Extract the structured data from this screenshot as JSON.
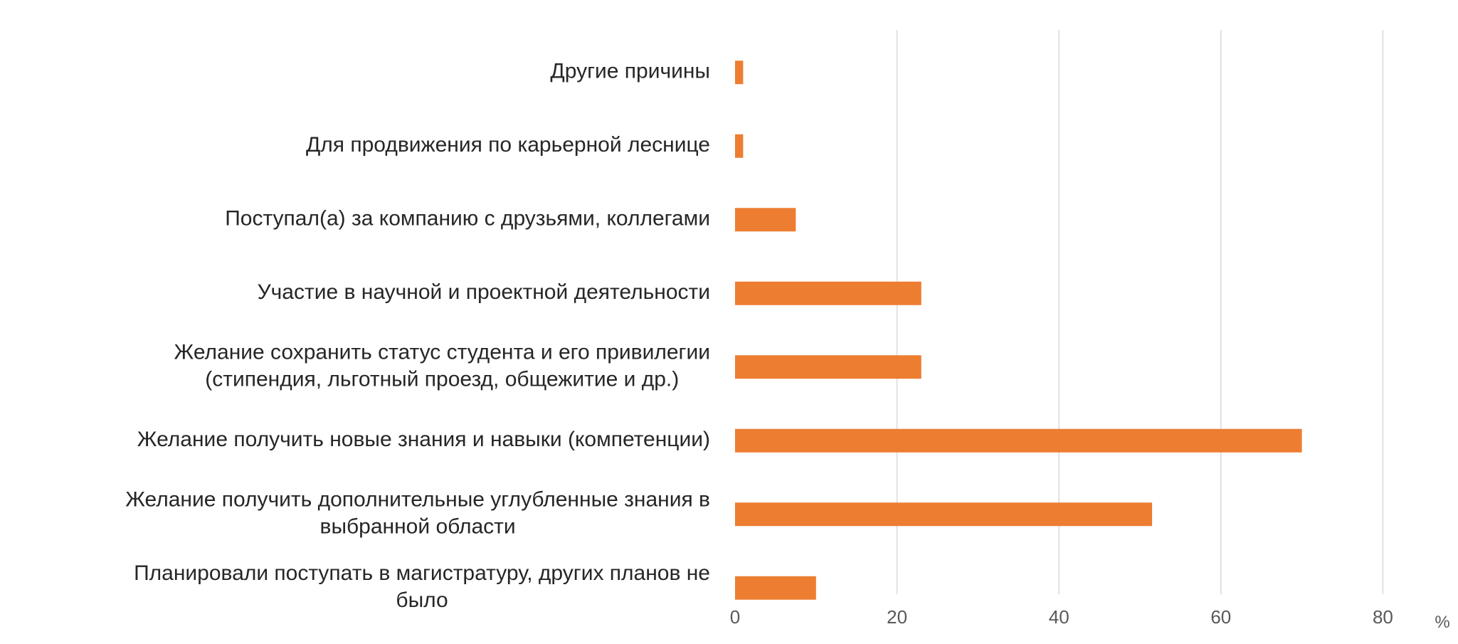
{
  "chart_data": {
    "type": "bar",
    "orientation": "horizontal",
    "categories": [
      [
        "Другие причины"
      ],
      [
        "Для продвижения по карьерной леснице"
      ],
      [
        "Поступал(а) за компанию с друзьями, коллегами"
      ],
      [
        "Участие в научной и проектной деятельности"
      ],
      [
        "Желание сохранить статус студента и его привилегии",
        "(стипендия, льготный проезд, общежитие и др.)"
      ],
      [
        "Желание получить новые знания и навыки (компетенции)"
      ],
      [
        "Желание получить дополнительные углубленные знания в",
        "выбранной области"
      ],
      [
        "Планировали поступать в магистратуру, других планов не",
        "было"
      ]
    ],
    "values": [
      1,
      1,
      7.5,
      23,
      23,
      70,
      51.5,
      10
    ],
    "xlim": [
      0,
      80
    ],
    "xticks": [
      0,
      20,
      40,
      60,
      80
    ],
    "x_unit_label": "%",
    "bar_color": "#ED7D31",
    "grid_color": "#D9D9D9",
    "grid": true,
    "legend": "none"
  }
}
